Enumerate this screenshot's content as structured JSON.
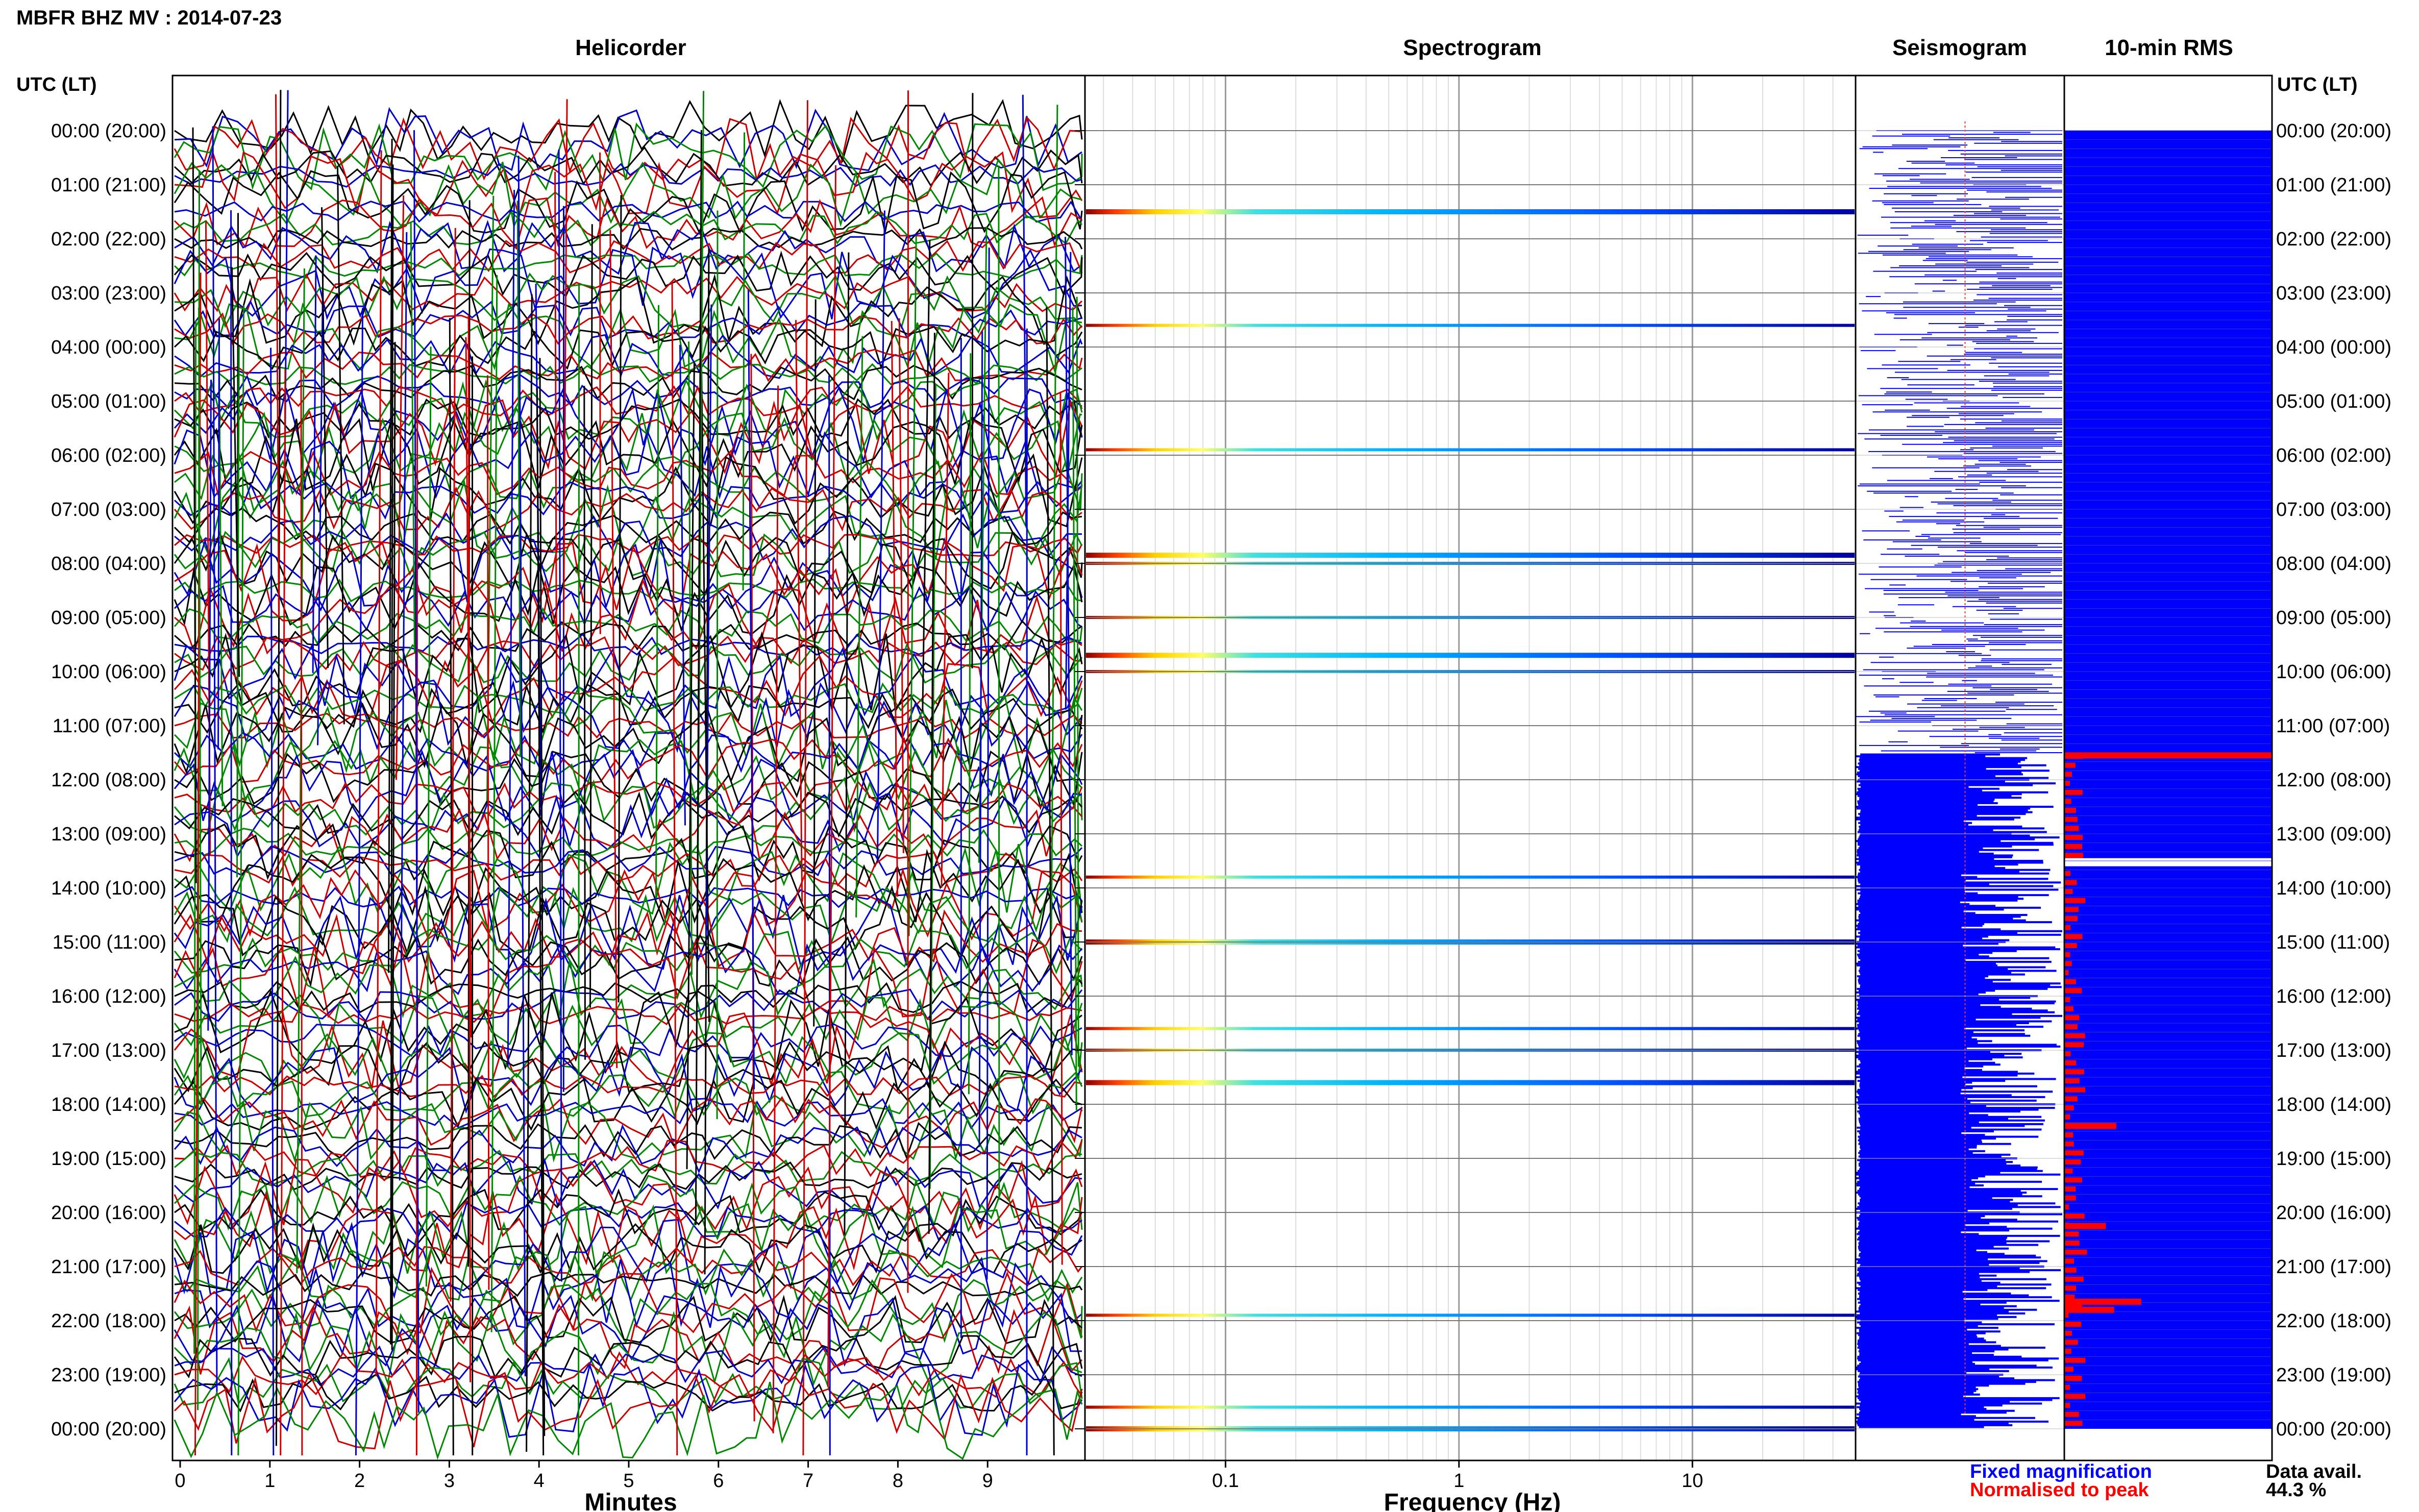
{
  "page_title": "MBFR BHZ MV : 2014-07-23",
  "panels": {
    "helicorder": "Helicorder",
    "spectrogram": "Spectrogram",
    "seismogram": "Seismogram",
    "rms": "10-min RMS"
  },
  "time_axis_label": "UTC (LT)",
  "time_labels": [
    "00:00 (20:00)",
    "01:00 (21:00)",
    "02:00 (22:00)",
    "03:00 (23:00)",
    "04:00 (00:00)",
    "05:00 (01:00)",
    "06:00 (02:00)",
    "07:00 (03:00)",
    "08:00 (04:00)",
    "09:00 (05:00)",
    "10:00 (06:00)",
    "11:00 (07:00)",
    "12:00 (08:00)",
    "13:00 (09:00)",
    "14:00 (10:00)",
    "15:00 (11:00)",
    "16:00 (12:00)",
    "17:00 (13:00)",
    "18:00 (14:00)",
    "19:00 (15:00)",
    "20:00 (16:00)",
    "21:00 (17:00)",
    "22:00 (18:00)",
    "23:00 (19:00)",
    "00:00 (20:00)"
  ],
  "helicorder_axis": {
    "label": "Minutes",
    "ticks": [
      "0",
      "1",
      "2",
      "3",
      "4",
      "5",
      "6",
      "7",
      "8",
      "9"
    ],
    "xlim": [
      0,
      10
    ]
  },
  "spectrogram_axis": {
    "label": "Frequency (Hz)",
    "ticks": [
      "0.1",
      "1",
      "10"
    ],
    "scale": "log",
    "xlim": [
      0.025,
      50
    ]
  },
  "legend": {
    "fixed": "Fixed magnification",
    "normalised": "Normalised to peak",
    "fixed_color": "#0000ff",
    "normalised_color": "#ff0000"
  },
  "data_availability": {
    "label": "Data avail.",
    "value": "44.3 %"
  },
  "colors": {
    "trace_colors": [
      "#000000",
      "#0000cc",
      "#cc0000",
      "#008800"
    ],
    "rms_fill": "#0000ff",
    "rms_peak": "#ff0000",
    "seismogram": "#0000ff"
  },
  "chart_data": {
    "type": "heatmap",
    "title": "MBFR BHZ MV : 2014-07-23",
    "time_range_hours": [
      0,
      24
    ],
    "spectrogram_bands_hours": [
      1.5,
      3.6,
      5.9,
      7.85,
      8.0,
      9.0,
      9.7,
      10.0,
      13.8,
      15.0,
      16.6,
      17.0,
      17.6,
      21.9,
      23.6,
      24.0
    ],
    "rms_peaks": [
      {
        "hour": 11.55,
        "value": 1.0
      },
      {
        "hour": 18.4,
        "value": 0.25
      },
      {
        "hour": 20.25,
        "value": 0.2
      },
      {
        "hour": 21.65,
        "value": 0.37
      },
      {
        "hour": 21.8,
        "value": 0.24
      }
    ],
    "data_gap_hours": [
      13.45,
      13.6
    ]
  }
}
